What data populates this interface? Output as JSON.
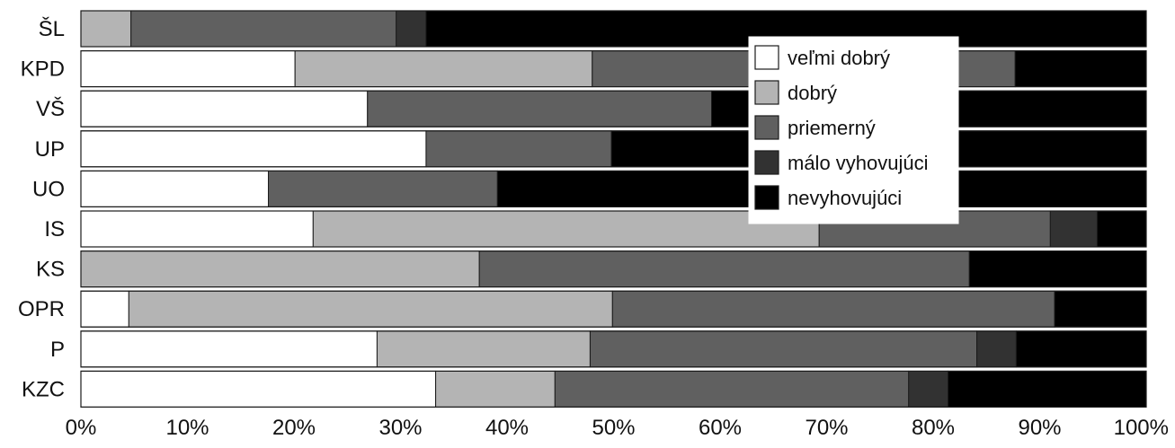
{
  "chart_data": {
    "type": "bar",
    "orientation": "horizontal",
    "stacked": true,
    "normalized": true,
    "title": "",
    "xlabel": "",
    "ylabel": "",
    "xlim": [
      0,
      100
    ],
    "x_ticks": [
      "0%",
      "10%",
      "20%",
      "30%",
      "40%",
      "50%",
      "60%",
      "70%",
      "80%",
      "90%",
      "100%"
    ],
    "categories": [
      "ŠL",
      "KPD",
      "VŠ",
      "UP",
      "UO",
      "IS",
      "KS",
      "OPR",
      "P",
      "KZC"
    ],
    "series": [
      {
        "name": "veľmi dobrý",
        "color": "#ffffff",
        "values": [
          0.0,
          20.1,
          26.9,
          32.4,
          17.6,
          21.8,
          0.0,
          4.5,
          27.8,
          33.3
        ]
      },
      {
        "name": "dobrý",
        "color": "#b4b4b4",
        "values": [
          4.7,
          27.9,
          0.0,
          0.0,
          0.0,
          47.5,
          37.4,
          45.4,
          20.0,
          11.2
        ]
      },
      {
        "name": "priemerný",
        "color": "#606060",
        "values": [
          24.9,
          39.7,
          32.3,
          17.4,
          21.5,
          21.7,
          46.0,
          41.5,
          36.3,
          33.2
        ]
      },
      {
        "name": "málo vyhovujúci",
        "color": "#323232",
        "values": [
          2.8,
          0.0,
          0.0,
          0.0,
          0.0,
          4.4,
          0.0,
          0.0,
          3.7,
          3.7
        ]
      },
      {
        "name": "nevyhovujúci",
        "color": "#000000",
        "values": [
          67.6,
          12.3,
          40.8,
          50.2,
          60.9,
          4.6,
          16.6,
          8.6,
          12.2,
          18.6
        ]
      }
    ],
    "grid": false,
    "legend_position": "top-right inset"
  }
}
